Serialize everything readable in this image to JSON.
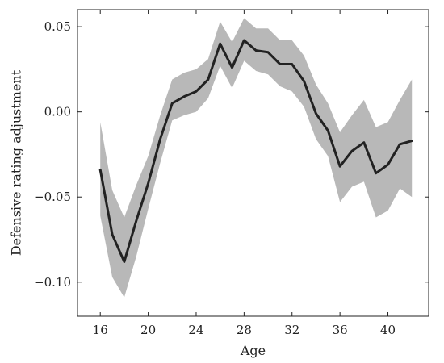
{
  "chart_data": {
    "type": "line",
    "title": "",
    "xlabel": "Age",
    "ylabel": "Defensive rating adjustment",
    "xlim": [
      14.1,
      43.4
    ],
    "ylim": [
      -0.12,
      0.06
    ],
    "xticks": [
      16,
      20,
      24,
      28,
      32,
      36,
      40
    ],
    "yticks": [
      0.05,
      0.0,
      -0.05,
      -0.1
    ],
    "ytick_labels": [
      "0.05",
      "0.00",
      "−0.05",
      "−0.10"
    ],
    "grid": false,
    "legend": "none",
    "colors": {
      "line": "#222222",
      "band": "#b8b8b8",
      "axis": "#222222"
    },
    "series": [
      {
        "x": [
          16,
          17,
          18,
          19,
          20,
          21,
          22,
          23,
          24,
          25,
          26,
          27,
          28,
          29,
          30,
          31,
          32,
          33,
          34,
          35,
          36,
          37,
          38,
          39,
          40,
          41,
          42
        ],
        "values": [
          -0.034,
          -0.072,
          -0.088,
          -0.064,
          -0.042,
          -0.016,
          0.005,
          0.009,
          0.012,
          0.019,
          0.04,
          0.026,
          0.042,
          0.036,
          0.035,
          0.028,
          0.028,
          0.018,
          -0.001,
          -0.011,
          -0.032,
          -0.023,
          -0.018,
          -0.036,
          -0.031,
          -0.019,
          -0.017
        ],
        "lower": [
          -0.061,
          -0.097,
          -0.109,
          -0.085,
          -0.057,
          -0.03,
          -0.005,
          -0.002,
          0.0,
          0.008,
          0.027,
          0.014,
          0.03,
          0.024,
          0.022,
          0.015,
          0.012,
          0.003,
          -0.016,
          -0.026,
          -0.053,
          -0.044,
          -0.041,
          -0.062,
          -0.058,
          -0.045,
          -0.05
        ],
        "upper": [
          -0.006,
          -0.046,
          -0.062,
          -0.043,
          -0.026,
          -0.002,
          0.019,
          0.023,
          0.025,
          0.031,
          0.053,
          0.041,
          0.055,
          0.049,
          0.049,
          0.042,
          0.042,
          0.033,
          0.016,
          0.005,
          -0.012,
          -0.002,
          0.007,
          -0.009,
          -0.006,
          0.007,
          0.019
        ]
      }
    ]
  }
}
